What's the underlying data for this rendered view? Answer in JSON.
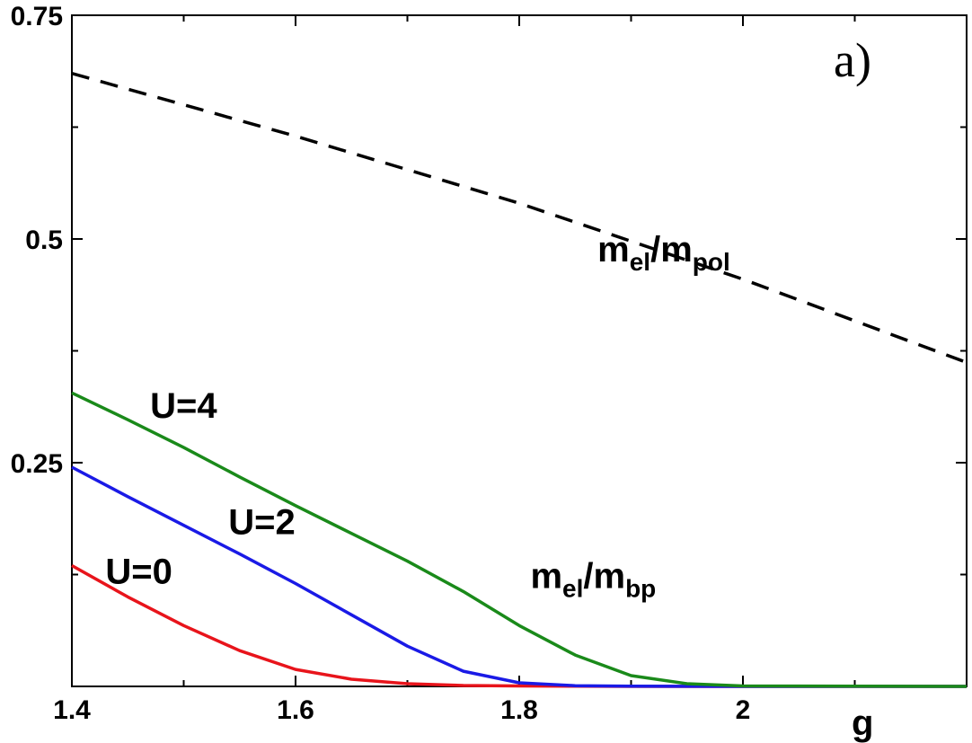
{
  "chart_data": {
    "type": "line",
    "panel_label": "a)",
    "xlabel": "g",
    "ylabel": "",
    "xlim": [
      1.4,
      2.2
    ],
    "ylim": [
      0,
      0.75
    ],
    "x_ticks": [
      1.4,
      1.6,
      1.8,
      2.0
    ],
    "x_tick_labels": [
      "1.4",
      "1.6",
      "1.8",
      "2"
    ],
    "y_ticks": [
      0.25,
      0.5,
      0.75
    ],
    "y_tick_labels": [
      "0.25",
      "0.5",
      "0.75"
    ],
    "grid": false,
    "series": [
      {
        "name": "U=0",
        "color": "#e8141b",
        "dash": "solid",
        "x": [
          1.4,
          1.45,
          1.5,
          1.55,
          1.6,
          1.65,
          1.7,
          1.75,
          1.8,
          1.85,
          1.9,
          2.0,
          2.2
        ],
        "y": [
          0.135,
          0.1,
          0.068,
          0.04,
          0.019,
          0.008,
          0.003,
          0.001,
          0.0005,
          0.0002,
          0.0,
          0.0,
          0.0
        ]
      },
      {
        "name": "U=2",
        "color": "#1a1ae6",
        "dash": "solid",
        "x": [
          1.4,
          1.45,
          1.5,
          1.55,
          1.6,
          1.65,
          1.7,
          1.75,
          1.8,
          1.85,
          1.9,
          2.0,
          2.2
        ],
        "y": [
          0.245,
          0.212,
          0.18,
          0.148,
          0.115,
          0.08,
          0.045,
          0.017,
          0.004,
          0.0008,
          0.0002,
          0.0,
          0.0
        ]
      },
      {
        "name": "U=4",
        "color": "#1a8a1a",
        "dash": "solid",
        "x": [
          1.4,
          1.45,
          1.5,
          1.55,
          1.6,
          1.65,
          1.7,
          1.75,
          1.8,
          1.85,
          1.9,
          1.95,
          2.0,
          2.2
        ],
        "y": [
          0.328,
          0.298,
          0.267,
          0.234,
          0.202,
          0.171,
          0.14,
          0.106,
          0.068,
          0.035,
          0.012,
          0.003,
          0.0005,
          0.0
        ]
      },
      {
        "name": "m_el/m_pol",
        "color": "#000000",
        "dash": "dashed",
        "x": [
          1.4,
          1.6,
          1.8,
          2.0,
          2.2
        ],
        "y": [
          0.685,
          0.615,
          0.54,
          0.455,
          0.362
        ]
      }
    ],
    "annotations": [
      {
        "text": "U=4",
        "x": 1.47,
        "y": 0.3
      },
      {
        "text": "U=2",
        "x": 1.54,
        "y": 0.17
      },
      {
        "text": "U=0",
        "x": 1.43,
        "y": 0.115
      },
      {
        "main": "m",
        "sub1": "el",
        "slash": "/m",
        "sub2": "bp",
        "x": 1.81,
        "y": 0.11
      },
      {
        "main": "m",
        "sub1": "el",
        "slash": "/m",
        "sub2": "pol",
        "x": 1.87,
        "y": 0.475
      }
    ]
  }
}
